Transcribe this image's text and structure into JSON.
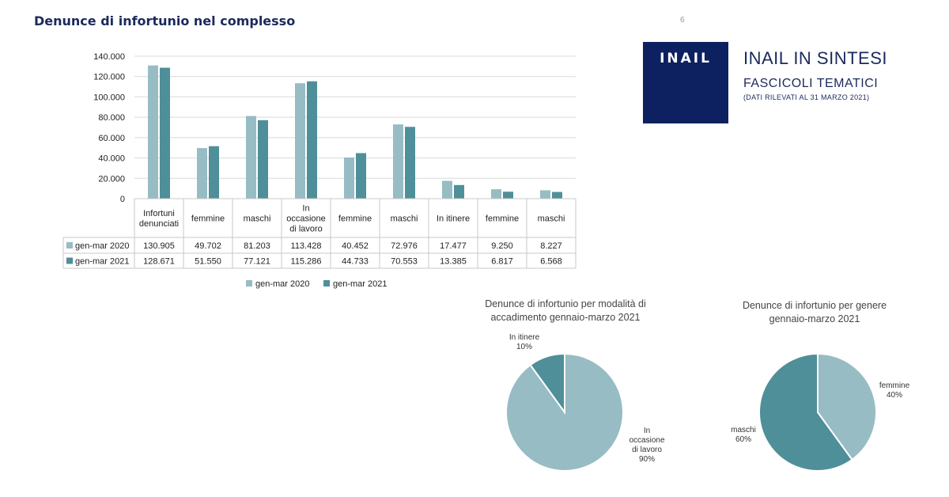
{
  "header": {
    "title": "Denunce di infortunio nel complesso",
    "corner_mark": "6"
  },
  "brand": {
    "logo_text": "INAIL",
    "title": "INAIL IN SINTESI",
    "subtitle": "FASCICOLI TEMATICI",
    "note": "(DATI RILEVATI AL 31 MARZO 2021)"
  },
  "colors": {
    "series_2020": "#97bcc4",
    "series_2021": "#4f8f99",
    "navy": "#0d2161"
  },
  "chart_data": [
    {
      "type": "bar",
      "title": "Denunce di infortunio nel complesso",
      "categories": [
        [
          "Infortuni",
          "denunciati"
        ],
        [
          "femmine"
        ],
        [
          "maschi"
        ],
        [
          "In",
          "occasione",
          "di lavoro"
        ],
        [
          "femmine"
        ],
        [
          "maschi"
        ],
        [
          "In itinere"
        ],
        [
          "femmine"
        ],
        [
          "maschi"
        ]
      ],
      "series": [
        {
          "name": "gen-mar 2020",
          "values": [
            130905,
            49702,
            81203,
            113428,
            40452,
            72976,
            17477,
            9250,
            8227
          ],
          "labels": [
            "130.905",
            "49.702",
            "81.203",
            "113.428",
            "40.452",
            "72.976",
            "17.477",
            "9.250",
            "8.227"
          ]
        },
        {
          "name": "gen-mar 2021",
          "values": [
            128671,
            51550,
            77121,
            115286,
            44733,
            70553,
            13385,
            6817,
            6568
          ],
          "labels": [
            "128.671",
            "51.550",
            "77.121",
            "115.286",
            "44.733",
            "70.553",
            "13.385",
            "6.817",
            "6.568"
          ]
        }
      ],
      "ylim": [
        0,
        140000
      ],
      "yticks": [
        0,
        20000,
        40000,
        60000,
        80000,
        100000,
        120000,
        140000
      ],
      "ytick_labels": [
        "0",
        "20.000",
        "40.000",
        "60.000",
        "80.000",
        "100.000",
        "120.000",
        "140.000"
      ],
      "grid": true,
      "data_table": true,
      "legend": "bottom"
    },
    {
      "type": "pie",
      "title": [
        "Denunce di infortunio per modalità di",
        "accadimento gennaio-marzo 2021"
      ],
      "slices": [
        {
          "name": "In itinere",
          "value": 10,
          "label_lines": [
            "In itinere",
            "10%"
          ]
        },
        {
          "name": "In occasione di lavoro",
          "value": 90,
          "label_lines": [
            "In",
            "occasione",
            "di lavoro",
            "90%"
          ]
        }
      ]
    },
    {
      "type": "pie",
      "title": [
        "Denunce di infortunio per genere",
        "gennaio-marzo 2021"
      ],
      "slices": [
        {
          "name": "femmine",
          "value": 40,
          "label_lines": [
            "femmine",
            "40%"
          ]
        },
        {
          "name": "maschi",
          "value": 60,
          "label_lines": [
            "maschi",
            "60%"
          ]
        }
      ]
    }
  ]
}
